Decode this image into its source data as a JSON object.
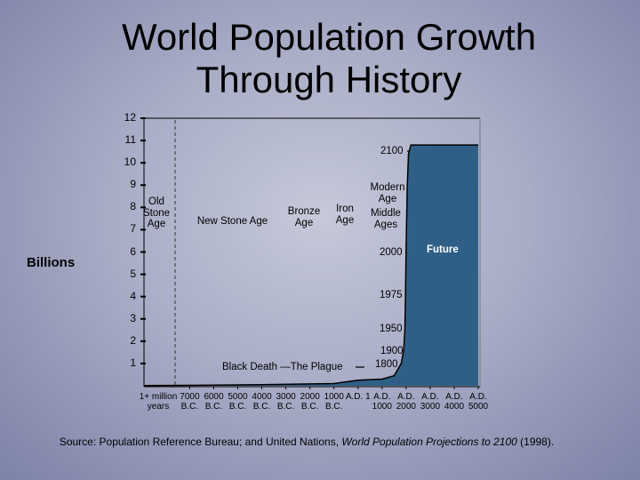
{
  "chart_data": {
    "type": "area",
    "title": "World Population Growth Through History",
    "ylabel": "Billions",
    "x_start_label": "1+ million years",
    "x": [
      -8900,
      -7000,
      -4000,
      -1000,
      1,
      1000,
      1500,
      1800,
      1900,
      1950,
      1975,
      2000,
      2050,
      2100,
      2200,
      3000,
      5000
    ],
    "values": [
      0.01,
      0.02,
      0.05,
      0.1,
      0.25,
      0.3,
      0.45,
      1,
      1.6,
      2.5,
      4,
      6.1,
      9,
      10.4,
      10.8,
      10.8,
      10.8
    ],
    "color": "#2f5f86",
    "xlim": [
      -8900,
      5000
    ],
    "xticks": [
      {
        "value": -7000,
        "label": "7000 B.C."
      },
      {
        "value": -6000,
        "label": "6000 B.C."
      },
      {
        "value": -5000,
        "label": "5000 B.C."
      },
      {
        "value": -4000,
        "label": "4000 B.C."
      },
      {
        "value": -3000,
        "label": "3000 B.C."
      },
      {
        "value": -2000,
        "label": "2000 B.C."
      },
      {
        "value": -1000,
        "label": "1000 B.C."
      },
      {
        "value": 1,
        "label": "A.D. 1"
      },
      {
        "value": 1000,
        "label": "A.D. 1000"
      },
      {
        "value": 2000,
        "label": "A.D. 2000"
      },
      {
        "value": 3000,
        "label": "A.D. 3000"
      },
      {
        "value": 4000,
        "label": "A.D. 4000"
      },
      {
        "value": 5000,
        "label": "A.D. 5000"
      }
    ],
    "ylim": [
      0,
      12
    ],
    "yticks": [
      1,
      2,
      3,
      4,
      5,
      6,
      7,
      8,
      9,
      10,
      11,
      12
    ],
    "annotations": [
      "Old Stone Age",
      "New Stone Age",
      "Bronze Age",
      "Iron Age",
      "Modern Age",
      "Middle Ages",
      "Black Death —The Plague",
      "2100",
      "2000",
      "1975",
      "1950",
      "1900",
      "1800",
      "Future"
    ],
    "source": [
      "Source: Population Reference Bureau; and United Nations, ",
      "World Population Projections to 2100",
      " (1998)."
    ]
  }
}
